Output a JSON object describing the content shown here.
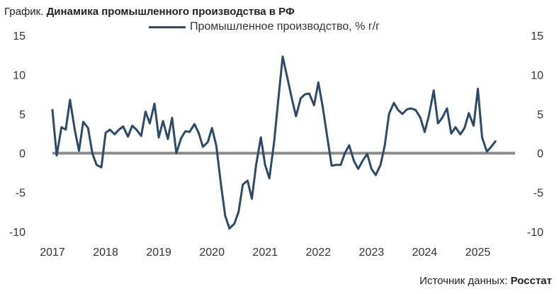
{
  "header": {
    "title_prefix": "График.",
    "title_main": "Динамика промышленного производства в РФ"
  },
  "footer": {
    "source_label": "Источник данных:",
    "source_value": "Росстат"
  },
  "colors": {
    "series": "#2c4a6b",
    "zero_line": "#8c8c8c",
    "text": "#333333"
  },
  "chart_data": {
    "type": "line",
    "title": "Динамика промышленного производства в РФ",
    "legend": "top-center",
    "grid": false,
    "ylim": [
      -10,
      15
    ],
    "yticks": [
      -10,
      -5,
      0,
      5,
      10,
      15
    ],
    "yticks_right": true,
    "xlim": [
      2017.0,
      2025.7
    ],
    "xticks": [
      2017,
      2018,
      2019,
      2020,
      2021,
      2022,
      2023,
      2024,
      2025
    ],
    "reference_line": 0,
    "series": [
      {
        "name": "Промышленное производство, % г/г",
        "points": [
          [
            2017.0,
            5.5
          ],
          [
            2017.08,
            -0.3
          ],
          [
            2017.17,
            3.3
          ],
          [
            2017.25,
            3.0
          ],
          [
            2017.33,
            6.8
          ],
          [
            2017.42,
            3.0
          ],
          [
            2017.5,
            0.3
          ],
          [
            2017.58,
            4.0
          ],
          [
            2017.67,
            3.2
          ],
          [
            2017.75,
            0.0
          ],
          [
            2017.83,
            -1.5
          ],
          [
            2017.92,
            -1.8
          ],
          [
            2018.0,
            2.6
          ],
          [
            2018.08,
            3.0
          ],
          [
            2018.17,
            2.4
          ],
          [
            2018.25,
            3.0
          ],
          [
            2018.33,
            3.4
          ],
          [
            2018.42,
            2.1
          ],
          [
            2018.5,
            3.5
          ],
          [
            2018.58,
            3.0
          ],
          [
            2018.67,
            2.2
          ],
          [
            2018.75,
            5.3
          ],
          [
            2018.83,
            3.8
          ],
          [
            2018.92,
            6.3
          ],
          [
            2019.0,
            2.0
          ],
          [
            2019.08,
            4.1
          ],
          [
            2019.17,
            1.8
          ],
          [
            2019.25,
            4.5
          ],
          [
            2019.33,
            0.0
          ],
          [
            2019.42,
            1.9
          ],
          [
            2019.5,
            2.8
          ],
          [
            2019.58,
            2.7
          ],
          [
            2019.67,
            3.7
          ],
          [
            2019.75,
            2.6
          ],
          [
            2019.83,
            0.8
          ],
          [
            2019.92,
            1.4
          ],
          [
            2020.0,
            3.2
          ],
          [
            2020.08,
            1.0
          ],
          [
            2020.17,
            -4.0
          ],
          [
            2020.25,
            -8.0
          ],
          [
            2020.33,
            -9.6
          ],
          [
            2020.42,
            -9.0
          ],
          [
            2020.5,
            -7.5
          ],
          [
            2020.58,
            -4.0
          ],
          [
            2020.67,
            -3.5
          ],
          [
            2020.75,
            -5.8
          ],
          [
            2020.83,
            -1.5
          ],
          [
            2020.92,
            2.0
          ],
          [
            2021.0,
            -1.5
          ],
          [
            2021.08,
            -3.2
          ],
          [
            2021.17,
            1.5
          ],
          [
            2021.25,
            7.0
          ],
          [
            2021.33,
            12.3
          ],
          [
            2021.42,
            9.5
          ],
          [
            2021.5,
            7.0
          ],
          [
            2021.58,
            4.7
          ],
          [
            2021.67,
            7.0
          ],
          [
            2021.75,
            7.5
          ],
          [
            2021.83,
            7.6
          ],
          [
            2021.92,
            6.1
          ],
          [
            2022.0,
            9.0
          ],
          [
            2022.08,
            6.0
          ],
          [
            2022.17,
            2.0
          ],
          [
            2022.25,
            -1.6
          ],
          [
            2022.33,
            -1.5
          ],
          [
            2022.42,
            -1.5
          ],
          [
            2022.5,
            0.0
          ],
          [
            2022.58,
            1.0
          ],
          [
            2022.67,
            -1.0
          ],
          [
            2022.75,
            -2.0
          ],
          [
            2022.83,
            -1.0
          ],
          [
            2022.92,
            -0.1
          ],
          [
            2023.0,
            -2.0
          ],
          [
            2023.08,
            -2.8
          ],
          [
            2023.17,
            -1.5
          ],
          [
            2023.25,
            1.0
          ],
          [
            2023.33,
            5.0
          ],
          [
            2023.42,
            6.4
          ],
          [
            2023.5,
            5.5
          ],
          [
            2023.58,
            5.0
          ],
          [
            2023.67,
            5.6
          ],
          [
            2023.75,
            5.7
          ],
          [
            2023.83,
            5.5
          ],
          [
            2023.92,
            4.5
          ],
          [
            2024.0,
            2.7
          ],
          [
            2024.08,
            4.8
          ],
          [
            2024.17,
            8.0
          ],
          [
            2024.25,
            3.8
          ],
          [
            2024.33,
            4.5
          ],
          [
            2024.42,
            5.7
          ],
          [
            2024.5,
            2.5
          ],
          [
            2024.58,
            3.3
          ],
          [
            2024.67,
            2.4
          ],
          [
            2024.75,
            3.2
          ],
          [
            2024.83,
            5.1
          ],
          [
            2024.92,
            3.5
          ],
          [
            2025.0,
            8.2
          ],
          [
            2025.08,
            2.0
          ],
          [
            2025.17,
            0.2
          ],
          [
            2025.25,
            0.8
          ],
          [
            2025.33,
            1.5
          ]
        ]
      }
    ]
  }
}
